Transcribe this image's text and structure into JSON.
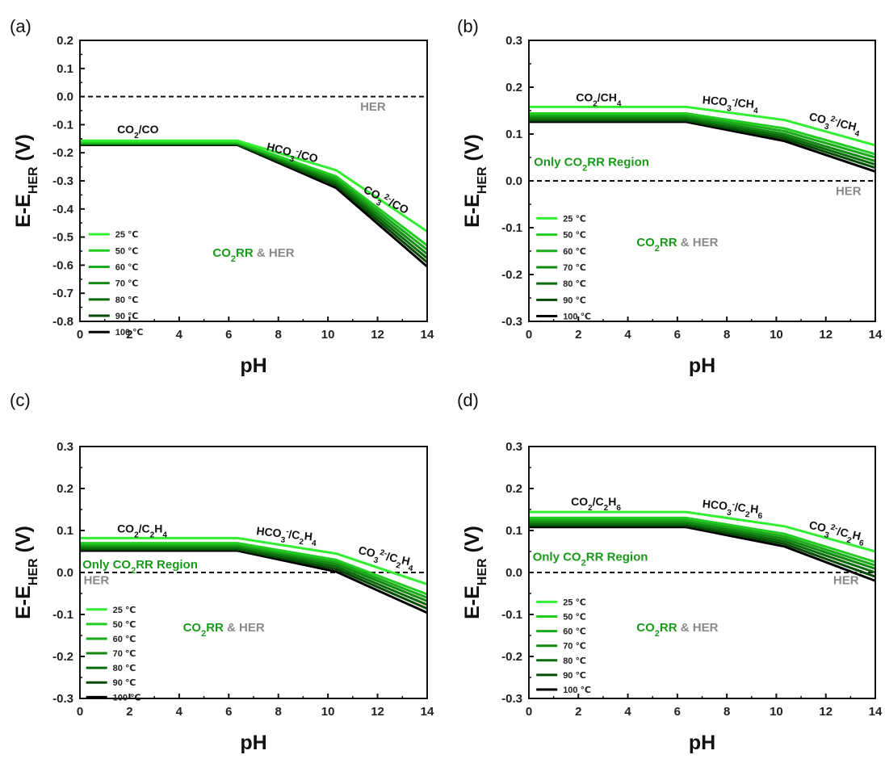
{
  "figure": {
    "colors": {
      "her": "#8a8a8a",
      "co2rr": "#1a9a1a",
      "series": [
        "#33ee33",
        "#22cc22",
        "#1aaa1a",
        "#128a12",
        "#0b6a0b",
        "#054a05",
        "#000000"
      ]
    },
    "legend_entries": [
      "25 ℃",
      "50 ℃",
      "60 ℃",
      "70 ℃",
      "80 ℃",
      "90 ℃",
      "100 ℃"
    ],
    "her_label": "HER",
    "co2rr_her": {
      "co": "CO",
      "sub": "2",
      "rr": "RR",
      "amp": " & ",
      "her": "HER"
    },
    "only_region": {
      "pre": "Only CO",
      "sub": "2",
      "post": "RR Region"
    }
  },
  "chart_data": [
    {
      "panel_label": "(a)",
      "type": "line",
      "xlabel": "pH",
      "ylabel": {
        "main": "E-E",
        "sub": "HER",
        "unit": " (V)"
      },
      "xlim": [
        0,
        14
      ],
      "ylim": [
        -0.8,
        0.2
      ],
      "xticks": [
        "0",
        "2",
        "4",
        "6",
        "8",
        "10",
        "12",
        "14"
      ],
      "yticks": [
        "0.2",
        "0.1",
        "0.0",
        "-0.1",
        "-0.2",
        "-0.3",
        "-0.4",
        "-0.5",
        "-0.6",
        "-0.7",
        "-0.8"
      ],
      "her_line": 0.0,
      "annotations": [
        {
          "parts": [
            [
              "CO",
              "n"
            ],
            [
              "2",
              "sub"
            ],
            [
              "/CO",
              "n"
            ]
          ],
          "pH": 1.5,
          "E": -0.13,
          "rot": 0
        },
        {
          "parts": [
            [
              "HCO",
              "n"
            ],
            [
              "3",
              "sub"
            ],
            [
              "-",
              "sup"
            ],
            [
              "/CO",
              "n"
            ]
          ],
          "pH": 7.5,
          "E": -0.19,
          "rot": 14
        },
        {
          "parts": [
            [
              "CO",
              "n"
            ],
            [
              "3",
              "sub"
            ],
            [
              "2-",
              "sup"
            ],
            [
              "/CO",
              "n"
            ]
          ],
          "pH": 11.4,
          "E": -0.34,
          "rot": 27
        }
      ],
      "series": [
        {
          "name": "25 ℃",
          "x": [
            0,
            6.35,
            10.33,
            14
          ],
          "y": [
            -0.157,
            -0.157,
            -0.262,
            -0.48
          ]
        },
        {
          "name": "50 ℃",
          "x": [
            0,
            6.35,
            10.33,
            14
          ],
          "y": [
            -0.162,
            -0.162,
            -0.284,
            -0.53
          ]
        },
        {
          "name": "60 ℃",
          "x": [
            0,
            6.35,
            10.33,
            14
          ],
          "y": [
            -0.164,
            -0.164,
            -0.292,
            -0.545
          ]
        },
        {
          "name": "70 ℃",
          "x": [
            0,
            6.35,
            10.33,
            14
          ],
          "y": [
            -0.166,
            -0.166,
            -0.3,
            -0.56
          ]
        },
        {
          "name": "80 ℃",
          "x": [
            0,
            6.35,
            10.33,
            14
          ],
          "y": [
            -0.168,
            -0.168,
            -0.308,
            -0.575
          ]
        },
        {
          "name": "90 ℃",
          "x": [
            0,
            6.35,
            10.33,
            14
          ],
          "y": [
            -0.17,
            -0.17,
            -0.316,
            -0.59
          ]
        },
        {
          "name": "100 ℃",
          "x": [
            0,
            6.35,
            10.33,
            14
          ],
          "y": [
            -0.172,
            -0.172,
            -0.325,
            -0.605
          ]
        }
      ],
      "show_only_region": false
    },
    {
      "panel_label": "(b)",
      "type": "line",
      "xlabel": "pH",
      "ylabel": {
        "main": "E-E",
        "sub": "HER",
        "unit": " (V)"
      },
      "xlim": [
        0,
        14
      ],
      "ylim": [
        -0.3,
        0.3
      ],
      "xticks": [
        "0",
        "2",
        "4",
        "6",
        "8",
        "10",
        "12",
        "14"
      ],
      "yticks": [
        "0.3",
        "0.2",
        "0.1",
        "0.0",
        "-0.1",
        "-0.2",
        "-0.3"
      ],
      "her_line": 0.0,
      "annotations": [
        {
          "parts": [
            [
              "CO",
              "n"
            ],
            [
              "2",
              "sub"
            ],
            [
              "/CH",
              "n"
            ],
            [
              "4",
              "sub"
            ]
          ],
          "pH": 1.9,
          "E": 0.17,
          "rot": 0
        },
        {
          "parts": [
            [
              "HCO",
              "n"
            ],
            [
              "3",
              "sub"
            ],
            [
              "-",
              "sup"
            ],
            [
              "/CH",
              "n"
            ],
            [
              "4",
              "sub"
            ]
          ],
          "pH": 7.0,
          "E": 0.165,
          "rot": 5
        },
        {
          "parts": [
            [
              "CO",
              "n"
            ],
            [
              "3",
              "sub"
            ],
            [
              "2-",
              "sup"
            ],
            [
              "/CH",
              "n"
            ],
            [
              "4",
              "sub"
            ]
          ],
          "pH": 11.3,
          "E": 0.13,
          "rot": 13
        }
      ],
      "series": [
        {
          "name": "25 ℃",
          "x": [
            0,
            6.35,
            10.33,
            14
          ],
          "y": [
            0.158,
            0.158,
            0.13,
            0.076
          ]
        },
        {
          "name": "50 ℃",
          "x": [
            0,
            6.35,
            10.33,
            14
          ],
          "y": [
            0.144,
            0.144,
            0.112,
            0.057
          ]
        },
        {
          "name": "60 ℃",
          "x": [
            0,
            6.35,
            10.33,
            14
          ],
          "y": [
            0.14,
            0.14,
            0.106,
            0.05
          ]
        },
        {
          "name": "70 ℃",
          "x": [
            0,
            6.35,
            10.33,
            14
          ],
          "y": [
            0.136,
            0.136,
            0.1,
            0.042
          ]
        },
        {
          "name": "80 ℃",
          "x": [
            0,
            6.35,
            10.33,
            14
          ],
          "y": [
            0.132,
            0.132,
            0.095,
            0.035
          ]
        },
        {
          "name": "90 ℃",
          "x": [
            0,
            6.35,
            10.33,
            14
          ],
          "y": [
            0.129,
            0.129,
            0.09,
            0.028
          ]
        },
        {
          "name": "100 ℃",
          "x": [
            0,
            6.35,
            10.33,
            14
          ],
          "y": [
            0.126,
            0.126,
            0.085,
            0.02
          ]
        }
      ],
      "show_only_region": true
    },
    {
      "panel_label": "(c)",
      "type": "line",
      "xlabel": "pH",
      "ylabel": {
        "main": "E-E",
        "sub": "HER",
        "unit": " (V)"
      },
      "xlim": [
        0,
        14
      ],
      "ylim": [
        -0.3,
        0.3
      ],
      "xticks": [
        "0",
        "2",
        "4",
        "6",
        "8",
        "10",
        "12",
        "14"
      ],
      "yticks": [
        "0.3",
        "0.2",
        "0.1",
        "0.0",
        "-0.1",
        "-0.2",
        "-0.3"
      ],
      "her_line": 0.0,
      "annotations": [
        {
          "parts": [
            [
              "CO",
              "n"
            ],
            [
              "2",
              "sub"
            ],
            [
              "/C",
              "n"
            ],
            [
              "2",
              "sub"
            ],
            [
              "H",
              "n"
            ],
            [
              "4",
              "sub"
            ]
          ],
          "pH": 1.5,
          "E": 0.095,
          "rot": 0
        },
        {
          "parts": [
            [
              "HCO",
              "n"
            ],
            [
              "3",
              "sub"
            ],
            [
              "-",
              "sup"
            ],
            [
              "/C",
              "n"
            ],
            [
              "2",
              "sub"
            ],
            [
              "H",
              "n"
            ],
            [
              "4",
              "sub"
            ]
          ],
          "pH": 7.1,
          "E": 0.09,
          "rot": 6
        },
        {
          "parts": [
            [
              "CO",
              "n"
            ],
            [
              "3",
              "sub"
            ],
            [
              "2-",
              "sup"
            ],
            [
              "/C",
              "n"
            ],
            [
              "2",
              "sub"
            ],
            [
              "H",
              "n"
            ],
            [
              "4",
              "sub"
            ]
          ],
          "pH": 11.2,
          "E": 0.045,
          "rot": 13
        }
      ],
      "series": [
        {
          "name": "25 ℃",
          "x": [
            0,
            6.35,
            10.33,
            14
          ],
          "y": [
            0.082,
            0.082,
            0.045,
            -0.028
          ]
        },
        {
          "name": "50 ℃",
          "x": [
            0,
            6.35,
            10.33,
            14
          ],
          "y": [
            0.07,
            0.07,
            0.03,
            -0.052
          ]
        },
        {
          "name": "60 ℃",
          "x": [
            0,
            6.35,
            10.33,
            14
          ],
          "y": [
            0.066,
            0.066,
            0.025,
            -0.06
          ]
        },
        {
          "name": "70 ℃",
          "x": [
            0,
            6.35,
            10.33,
            14
          ],
          "y": [
            0.062,
            0.062,
            0.02,
            -0.068
          ]
        },
        {
          "name": "80 ℃",
          "x": [
            0,
            6.35,
            10.33,
            14
          ],
          "y": [
            0.058,
            0.058,
            0.014,
            -0.077
          ]
        },
        {
          "name": "90 ℃",
          "x": [
            0,
            6.35,
            10.33,
            14
          ],
          "y": [
            0.055,
            0.055,
            0.008,
            -0.086
          ]
        },
        {
          "name": "100 ℃",
          "x": [
            0,
            6.35,
            10.33,
            14
          ],
          "y": [
            0.052,
            0.052,
            0.002,
            -0.096
          ]
        }
      ],
      "show_only_region": true
    },
    {
      "panel_label": "(d)",
      "type": "line",
      "xlabel": "pH",
      "ylabel": {
        "main": "E-E",
        "sub": "HER",
        "unit": " (V)"
      },
      "xlim": [
        0,
        14
      ],
      "ylim": [
        -0.3,
        0.3
      ],
      "xticks": [
        "0",
        "2",
        "4",
        "6",
        "8",
        "10",
        "12",
        "14"
      ],
      "yticks": [
        "0.3",
        "0.2",
        "0.1",
        "0.0",
        "-0.1",
        "-0.2",
        "-0.3"
      ],
      "her_line": 0.0,
      "annotations": [
        {
          "parts": [
            [
              "CO",
              "n"
            ],
            [
              "2",
              "sub"
            ],
            [
              "/C",
              "n"
            ],
            [
              "2",
              "sub"
            ],
            [
              "H",
              "n"
            ],
            [
              "6",
              "sub"
            ]
          ],
          "pH": 1.7,
          "E": 0.16,
          "rot": 0
        },
        {
          "parts": [
            [
              "HCO",
              "n"
            ],
            [
              "3",
              "sub"
            ],
            [
              "-",
              "sup"
            ],
            [
              "/C",
              "n"
            ],
            [
              "2",
              "sub"
            ],
            [
              "H",
              "n"
            ],
            [
              "6",
              "sub"
            ]
          ],
          "pH": 7.0,
          "E": 0.155,
          "rot": 6
        },
        {
          "parts": [
            [
              "CO",
              "n"
            ],
            [
              "3",
              "sub"
            ],
            [
              "2-",
              "sup"
            ],
            [
              "/C",
              "n"
            ],
            [
              "2",
              "sub"
            ],
            [
              "H",
              "n"
            ],
            [
              "6",
              "sub"
            ]
          ],
          "pH": 11.3,
          "E": 0.105,
          "rot": 13
        }
      ],
      "series": [
        {
          "name": "25 ℃",
          "x": [
            0,
            6.35,
            10.33,
            14
          ],
          "y": [
            0.144,
            0.144,
            0.11,
            0.05
          ]
        },
        {
          "name": "50 ℃",
          "x": [
            0,
            6.35,
            10.33,
            14
          ],
          "y": [
            0.13,
            0.13,
            0.092,
            0.025
          ]
        },
        {
          "name": "60 ℃",
          "x": [
            0,
            6.35,
            10.33,
            14
          ],
          "y": [
            0.125,
            0.125,
            0.086,
            0.017
          ]
        },
        {
          "name": "70 ℃",
          "x": [
            0,
            6.35,
            10.33,
            14
          ],
          "y": [
            0.12,
            0.12,
            0.08,
            0.009
          ]
        },
        {
          "name": "80 ℃",
          "x": [
            0,
            6.35,
            10.33,
            14
          ],
          "y": [
            0.116,
            0.116,
            0.074,
            0.0
          ]
        },
        {
          "name": "90 ℃",
          "x": [
            0,
            6.35,
            10.33,
            14
          ],
          "y": [
            0.112,
            0.112,
            0.068,
            -0.01
          ]
        },
        {
          "name": "100 ℃",
          "x": [
            0,
            6.35,
            10.33,
            14
          ],
          "y": [
            0.108,
            0.108,
            0.062,
            -0.02
          ]
        }
      ],
      "show_only_region": true
    }
  ]
}
